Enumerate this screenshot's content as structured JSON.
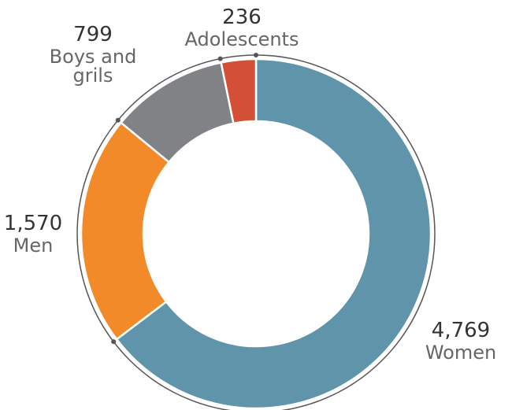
{
  "chart_data": {
    "type": "donut",
    "categories": [
      "Women",
      "Men",
      "Boys and grils",
      "Adolescents"
    ],
    "values": [
      4769,
      1570,
      799,
      236
    ],
    "value_labels": [
      "4,769",
      "1,570",
      "799",
      "236"
    ],
    "colors": [
      "#6094aa",
      "#f28a2a",
      "#808285",
      "#d34f35"
    ]
  }
}
